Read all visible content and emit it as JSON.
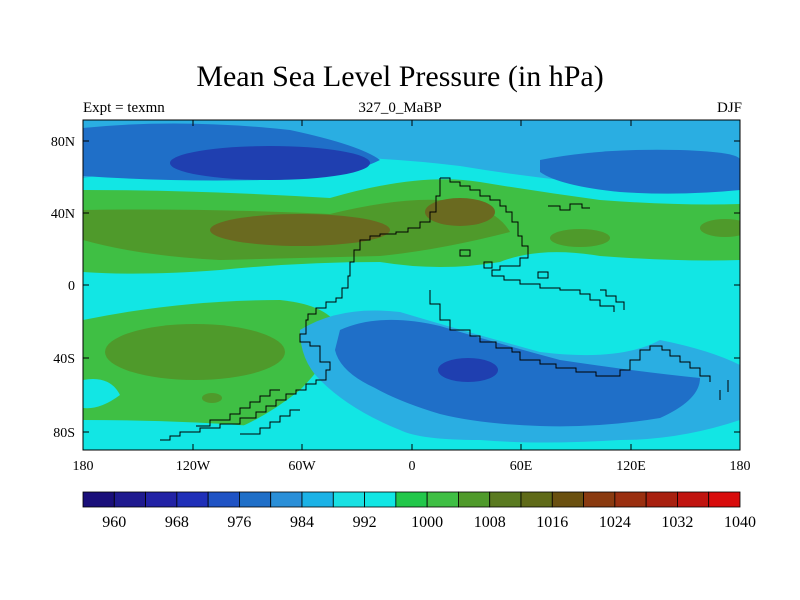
{
  "title": "Mean Sea Level Pressure (in hPa)",
  "left_label": "Expt = texmn",
  "center_label": "327_0_MaBP",
  "right_label": "DJF",
  "lat_ticks": [
    "80N",
    "40N",
    "0",
    "40S",
    "80S"
  ],
  "lon_ticks": [
    "180",
    "120W",
    "60W",
    "0",
    "60E",
    "120E",
    "180"
  ],
  "colorbar": {
    "colors": [
      "#1a0f7a",
      "#1f1a8f",
      "#2222a5",
      "#1f2fb8",
      "#1f53c4",
      "#1f6fc8",
      "#2a8fd8",
      "#1bb2e6",
      "#19e1e3",
      "#12e6e4",
      "#22c74a",
      "#3fbf44",
      "#4f9a2b",
      "#5a7a20",
      "#5f6a18",
      "#6a5010",
      "#8a3a10",
      "#9a2f10",
      "#a8200f",
      "#c0140f",
      "#d80c0c"
    ],
    "labels": [
      "960",
      "968",
      "976",
      "984",
      "992",
      "1000",
      "1008",
      "1016",
      "1024",
      "1032",
      "1040"
    ]
  },
  "map_colors": {
    "cyan": "#12e6e4",
    "light_blue": "#2aaee2",
    "blue": "#1f6fc8",
    "dark_blue": "#1f3fb0",
    "green": "#3fbf44",
    "olive": "#4f9a2b",
    "brown": "#6a6a20"
  }
}
